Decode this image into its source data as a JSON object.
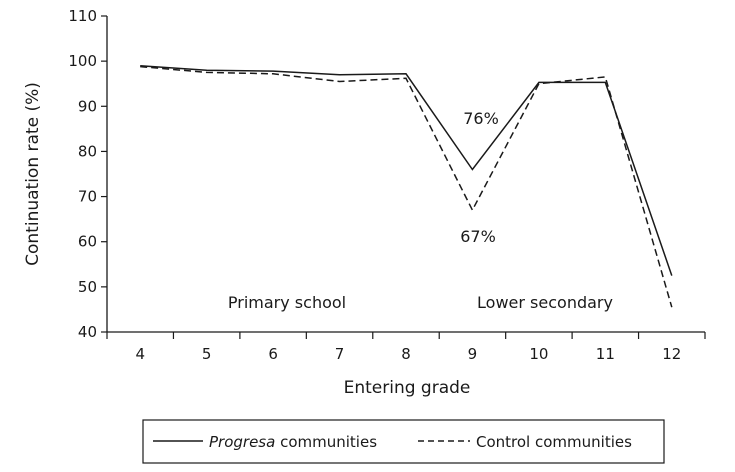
{
  "chart_data": {
    "type": "line",
    "title": "",
    "xlabel": "Entering grade",
    "ylabel": "Continuation rate (%)",
    "x": [
      4,
      5,
      6,
      7,
      8,
      9,
      10,
      11,
      12
    ],
    "ylim": [
      40,
      110
    ],
    "yticks": [
      40,
      50,
      60,
      70,
      80,
      90,
      100,
      110
    ],
    "grid": false,
    "legend": {
      "placement": "bottom",
      "entries": [
        {
          "style": "solid",
          "prefix_italic": "Progresa",
          "suffix": " communities"
        },
        {
          "style": "dashed",
          "prefix_italic": "",
          "suffix": "Control communities"
        }
      ]
    },
    "series": [
      {
        "style": "solid",
        "color": "#1a1a1a",
        "values": [
          99.0,
          98.0,
          97.8,
          97.0,
          97.2,
          76.0,
          95.3,
          95.3,
          52.5
        ]
      },
      {
        "style": "dashed",
        "color": "#1a1a1a",
        "values": [
          98.8,
          97.5,
          97.2,
          95.5,
          96.2,
          67.0,
          95.0,
          96.5,
          45.5
        ]
      }
    ],
    "annotations": {
      "series_labels": [
        "76%",
        "67%"
      ],
      "regions": [
        "Primary school",
        "Lower secondary"
      ]
    }
  }
}
